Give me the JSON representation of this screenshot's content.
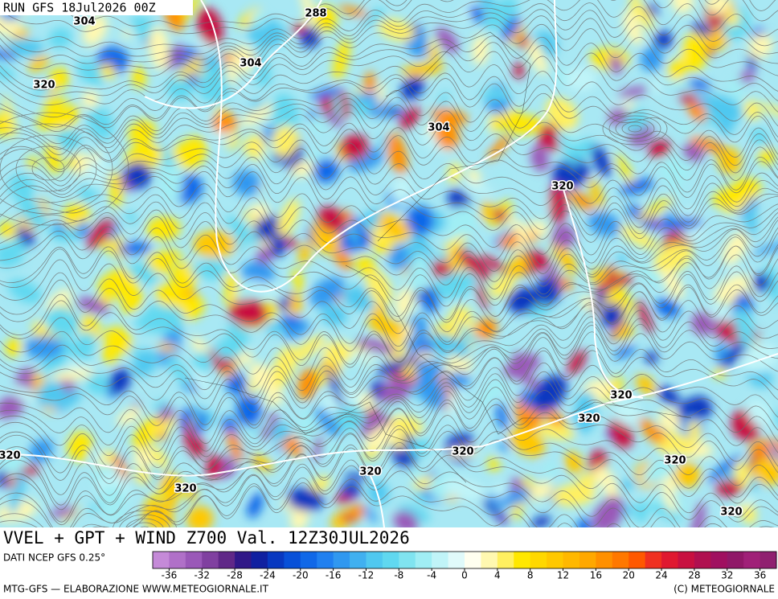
{
  "header": {
    "run": "RUN GFS 18Jul2026 00Z"
  },
  "contour_labels": [
    288,
    304,
    304,
    320,
    304,
    320,
    320,
    320,
    320,
    320,
    320,
    320,
    320,
    320
  ],
  "footer": {
    "title": "VVEL + GPT + WIND Z700 Val. 12Z30JUL2026",
    "source": "DATI NCEP GFS 0.25°",
    "credit_left": "MTG-GFS — ELABORAZIONE WWW.METEOGIORNALE.IT",
    "credit_right": "(C) METEOGIORNALE"
  },
  "colorbar": {
    "range": [
      -38,
      38
    ],
    "ticks": [
      -36,
      -32,
      -28,
      -24,
      -20,
      -16,
      -12,
      -8,
      -4,
      0,
      4,
      8,
      12,
      16,
      20,
      24,
      28,
      32,
      36
    ],
    "colors": [
      "#c58ad8",
      "#b070c8",
      "#9a58b8",
      "#8040a0",
      "#602888",
      "#301888",
      "#1020a0",
      "#0838c0",
      "#0850d8",
      "#1068e8",
      "#2080f0",
      "#3098f0",
      "#40b0f0",
      "#50c8f0",
      "#60d8f0",
      "#80e4f0",
      "#a0eef4",
      "#c0f4f8",
      "#e0fafa",
      "#fffff0",
      "#fff8b0",
      "#fff060",
      "#ffe800",
      "#ffd800",
      "#ffc800",
      "#ffb800",
      "#ffa800",
      "#ff9000",
      "#ff7800",
      "#ff5800",
      "#f03020",
      "#e01830",
      "#c81040",
      "#b01050",
      "#a01060",
      "#901868",
      "#a02078",
      "#902070"
    ]
  }
}
